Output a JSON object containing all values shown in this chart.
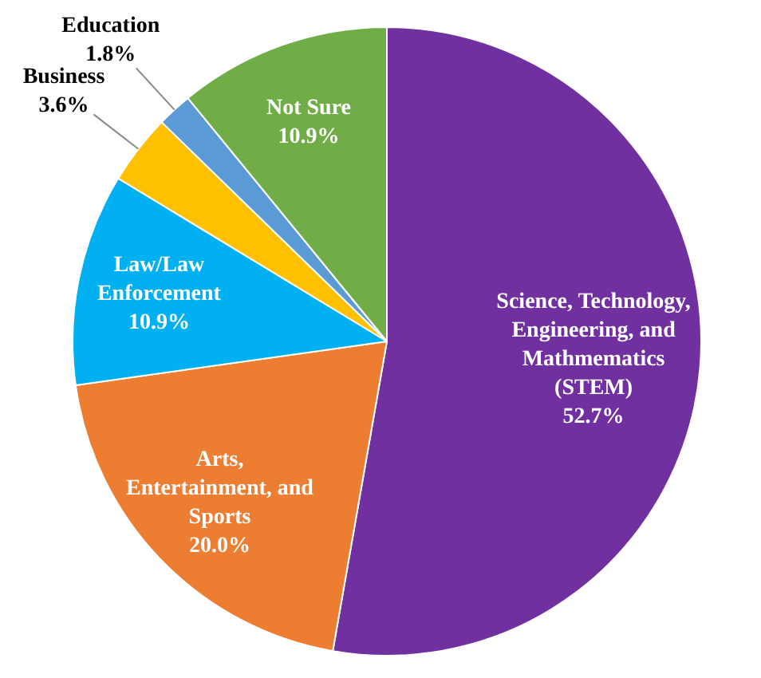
{
  "chart_data": {
    "type": "pie",
    "categories": [
      "Science, Technology, Engineering, and Mathmematics (STEM)",
      "Arts, Entertainment, and Sports",
      "Law/Law Enforcement",
      "Business",
      "Education",
      "Not Sure"
    ],
    "values": [
      52.7,
      20.0,
      10.9,
      3.6,
      1.8,
      10.9
    ],
    "value_labels": [
      "52.7%",
      "20.0%",
      "10.9%",
      "3.6%",
      "1.8%",
      "10.9%"
    ],
    "colors": [
      "#7030a0",
      "#ed7d31",
      "#00b0f0",
      "#ffc000",
      "#5b9bd5",
      "#70ad47"
    ],
    "legend": false
  }
}
